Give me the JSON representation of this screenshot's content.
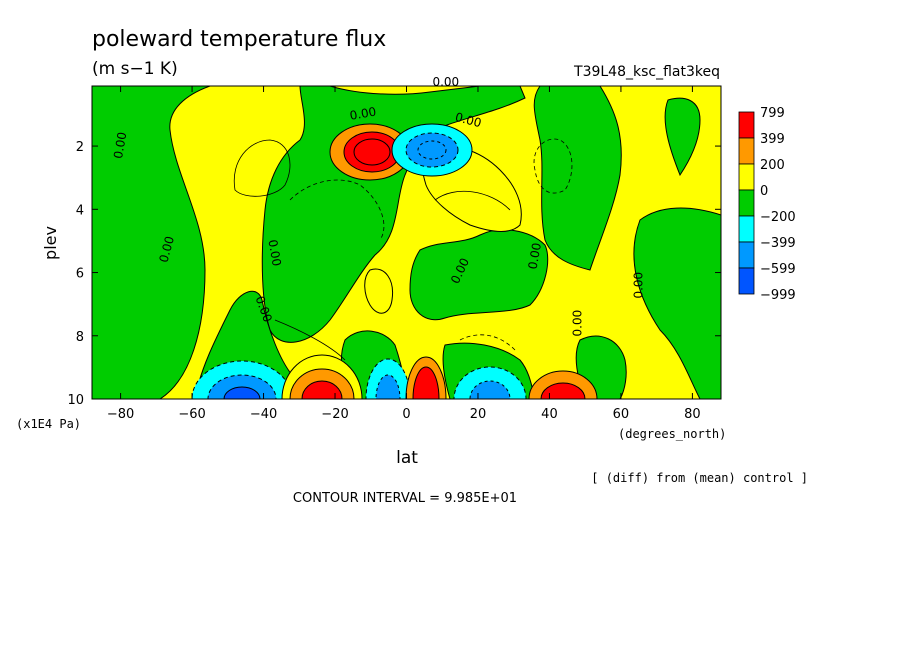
{
  "header": {
    "title": "poleward temperature flux",
    "units": "(m s−1 K)",
    "run_label": "T39L48_ksc_flat3keq"
  },
  "footer": {
    "diff_note": "[ (diff) from (mean) control ]",
    "contour_interval": "CONTOUR INTERVAL = 9.985E+01"
  },
  "chart_data": {
    "type": "heatmap",
    "title": "poleward temperature flux",
    "units": "(m s−1 K)",
    "xlabel": "lat",
    "xunits": "(degrees_north)",
    "ylabel": "plev",
    "yunits": "(x1E4 Pa)",
    "xlim": [
      -88,
      88
    ],
    "ylim": [
      10,
      0.1
    ],
    "y_inverted": true,
    "x_ticks": [
      -80,
      -60,
      -40,
      -20,
      0,
      20,
      40,
      60,
      80
    ],
    "y_ticks": [
      2,
      4,
      6,
      8,
      10
    ],
    "contour_interval": 99.85,
    "contour_label": "0.00",
    "colorbar": {
      "levels": [
        "799",
        "399",
        "200",
        "0",
        "−200",
        "−399",
        "−599",
        "−999"
      ],
      "colors": [
        "#ff0000",
        "#ff9900",
        "#ffff00",
        "#00cc00",
        "#00ffff",
        "#0099ff",
        "#0055ff"
      ]
    },
    "features": [
      {
        "lat": -5,
        "plev": 2.2,
        "value": 650,
        "sign": "positive"
      },
      {
        "lat": 9,
        "plev": 2.2,
        "value": -450,
        "sign": "negative"
      },
      {
        "lat": -45,
        "plev": 9.7,
        "value": -500,
        "sign": "negative"
      },
      {
        "lat": -24,
        "plev": 9.7,
        "value": 750,
        "sign": "positive"
      },
      {
        "lat": -8,
        "plev": 9.6,
        "value": -350,
        "sign": "negative"
      },
      {
        "lat": 6,
        "plev": 9.6,
        "value": 780,
        "sign": "positive"
      },
      {
        "lat": 20,
        "plev": 9.6,
        "value": -380,
        "sign": "negative"
      },
      {
        "lat": 43,
        "plev": 9.7,
        "value": 450,
        "sign": "positive"
      }
    ]
  }
}
